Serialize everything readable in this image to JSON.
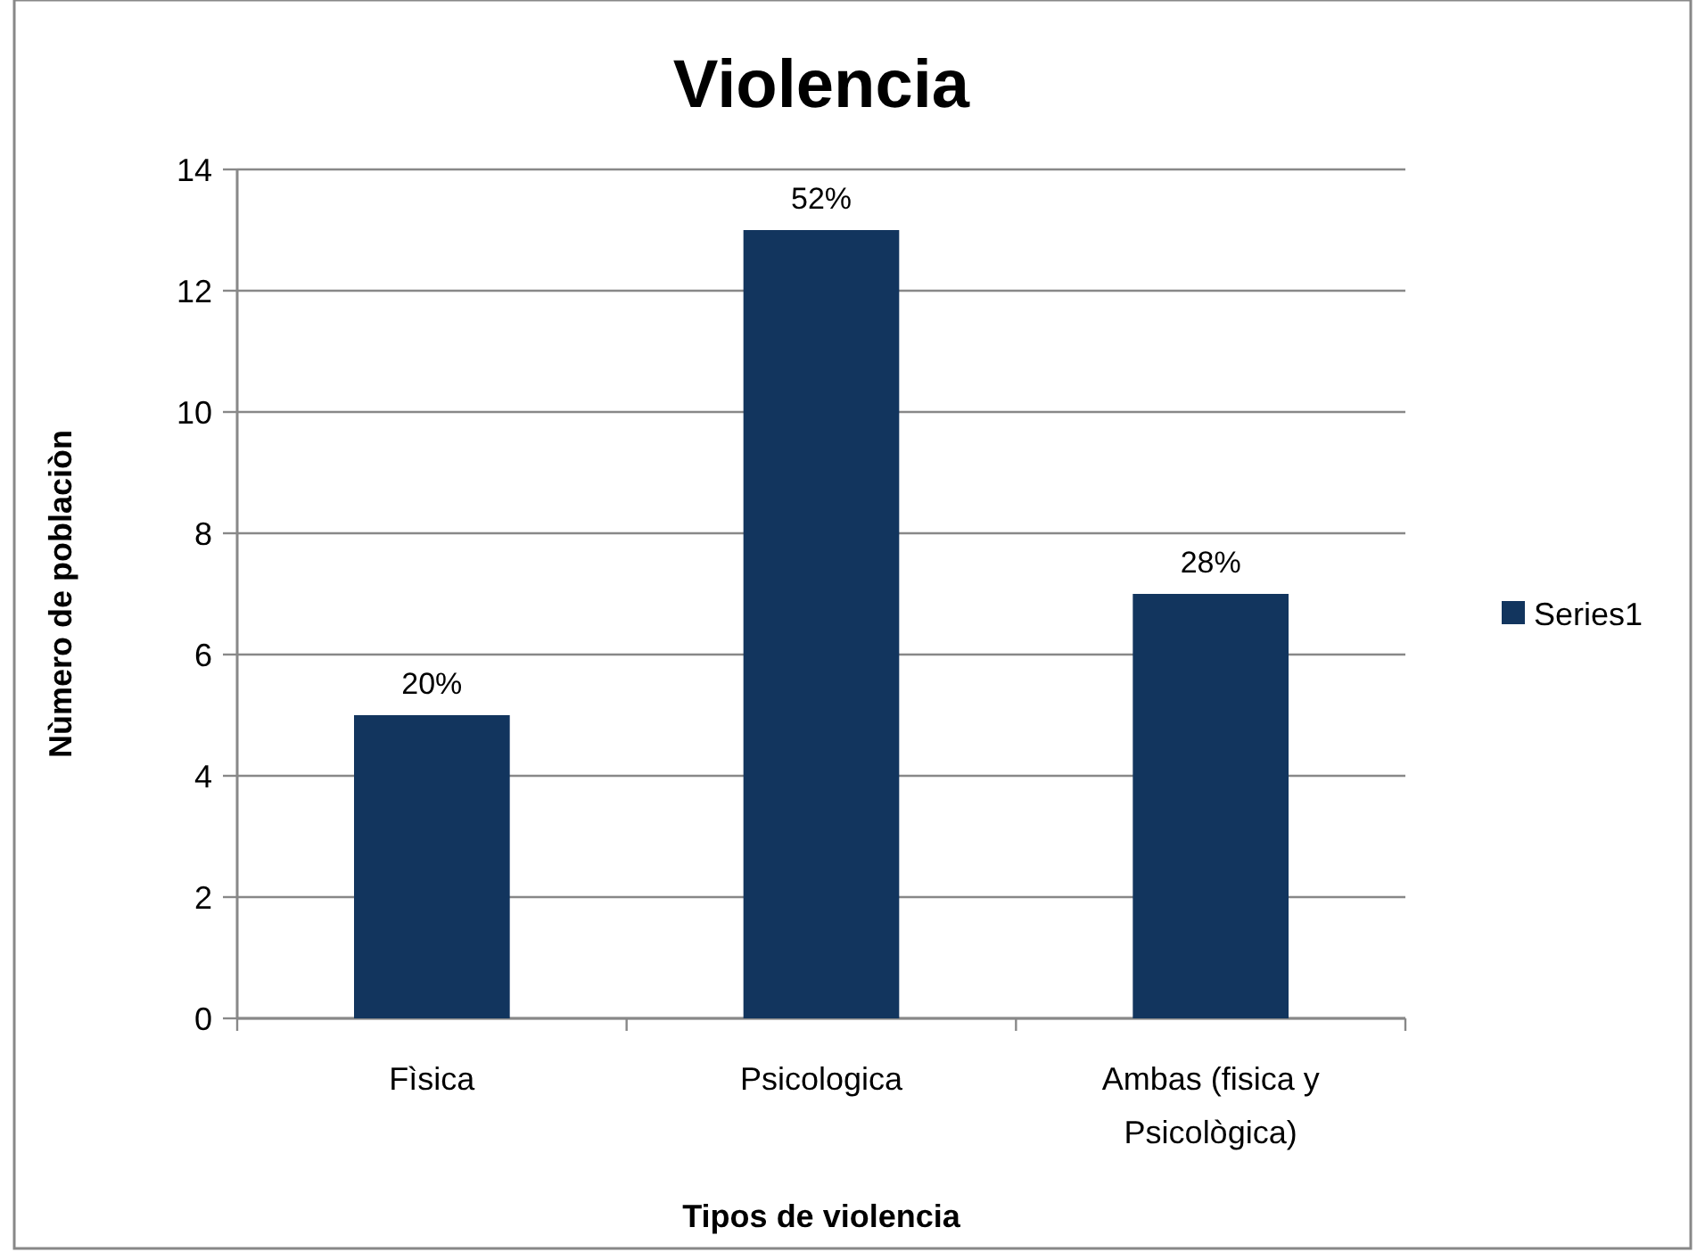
{
  "chart_data": {
    "type": "bar",
    "title": "Violencia",
    "xlabel": "Tipos de violencia",
    "ylabel": "Nùmero de poblaciòn",
    "categories": [
      "Fìsica",
      "Psicologica",
      "Ambas (fisica y Psicològica)"
    ],
    "series": [
      {
        "name": "Series1",
        "color": "#12355e",
        "values": [
          5,
          13,
          7
        ]
      }
    ],
    "annotations": [
      {
        "text": "20%",
        "x": "Fìsica",
        "y": 5
      },
      {
        "text": "52%",
        "x": "Psicologica",
        "y": 13
      },
      {
        "text": "28%",
        "x": "Ambas (fisica y Psicològica)",
        "y": 7
      }
    ],
    "ylim": [
      0,
      14
    ],
    "yticks": [
      0,
      2,
      4,
      6,
      8,
      10,
      12,
      14
    ],
    "grid": "y",
    "legend": "right"
  }
}
